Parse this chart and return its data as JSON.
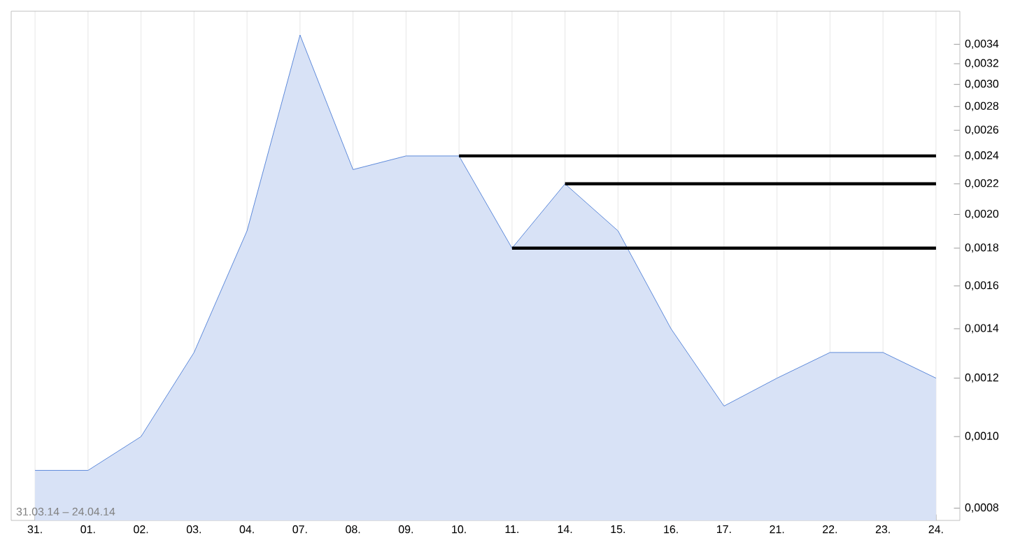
{
  "chart_data": {
    "type": "area",
    "categories": [
      "31.",
      "01.",
      "02.",
      "03.",
      "04.",
      "07.",
      "08.",
      "09.",
      "10.",
      "11.",
      "14.",
      "15.",
      "16.",
      "17.",
      "21.",
      "22.",
      "23.",
      "24."
    ],
    "series": [
      {
        "color": "#3a70d2",
        "values": [
          0.0009,
          0.0009,
          0.001,
          0.0013,
          0.0019,
          0.0035,
          0.0023,
          0.0024,
          0.0024,
          0.0018,
          0.0022,
          0.0019,
          0.0014,
          0.0011,
          0.0012,
          0.0013,
          0.0013,
          0.0012
        ]
      },
      {
        "type": "line",
        "color": "#000000",
        "values": [
          null,
          null,
          null,
          null,
          null,
          null,
          null,
          null,
          0.0024,
          0.0024,
          0.0024,
          0.0024,
          0.0024,
          0.0024,
          0.0024,
          0.0024,
          0.0024,
          0.0024
        ]
      },
      {
        "type": "line",
        "color": "#000000",
        "values": [
          null,
          null,
          null,
          null,
          null,
          null,
          null,
          null,
          null,
          null,
          0.0022,
          0.0022,
          0.0022,
          0.0022,
          0.0022,
          0.0022,
          0.0022,
          0.0022
        ]
      },
      {
        "type": "line",
        "color": "#000000",
        "values": [
          null,
          null,
          null,
          null,
          null,
          null,
          null,
          null,
          null,
          0.0018,
          0.0018,
          0.0018,
          0.0018,
          0.0018,
          0.0018,
          0.0018,
          0.0018,
          0.0018
        ]
      }
    ],
    "log": "y",
    "ylim": [
      0.00077,
      0.00377
    ],
    "yticks": [
      {
        "value": 0.0008,
        "label": "0,0008"
      },
      {
        "value": 0.001,
        "label": "0,0010"
      },
      {
        "value": 0.0012,
        "label": "0,0012"
      },
      {
        "value": 0.0014,
        "label": "0,0014"
      },
      {
        "value": 0.0016,
        "label": "0,0016"
      },
      {
        "value": 0.0018,
        "label": "0,0018"
      },
      {
        "value": 0.002,
        "label": "0,0020"
      },
      {
        "value": 0.0022,
        "label": "0,0022"
      },
      {
        "value": 0.0024,
        "label": "0,0024"
      },
      {
        "value": 0.0026,
        "label": "0,0026"
      },
      {
        "value": 0.0028,
        "label": "0,0028"
      },
      {
        "value": 0.003,
        "label": "0,0030"
      },
      {
        "value": 0.0032,
        "label": "0,0032"
      },
      {
        "value": 0.0034,
        "label": "0,0034"
      }
    ],
    "grid": "x",
    "annotations": [
      "31.03.14 – 24.04.14"
    ]
  }
}
